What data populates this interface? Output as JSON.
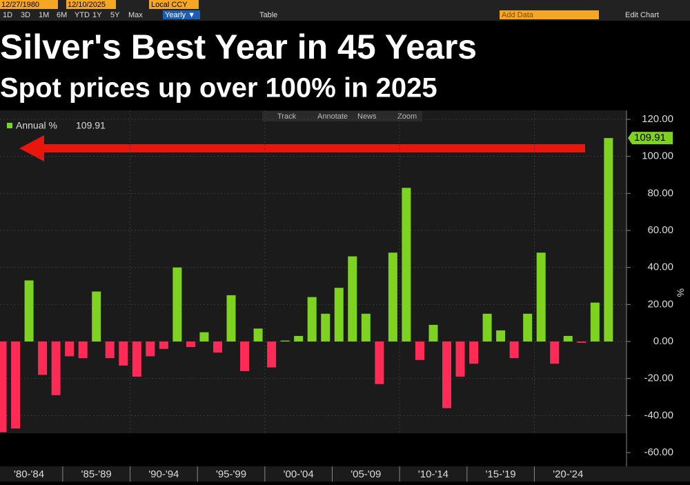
{
  "toolbar": {
    "start_date": "12/27/1980",
    "end_date": "12/10/2025",
    "currency": "Local CCY",
    "ranges": [
      "1D",
      "3D",
      "1M",
      "6M",
      "YTD",
      "1Y",
      "5Y",
      "Max"
    ],
    "period": "Yearly ▼",
    "table": "Table",
    "add_data": "Add Data",
    "edit_chart": "Edit Chart"
  },
  "chart_tools": [
    "Track",
    "Annotate",
    "News",
    "Zoom"
  ],
  "chart_data": {
    "type": "bar",
    "title": "Silver's Best Year in 45 Years",
    "subtitle": "Spot prices up over 100% in 2025",
    "y_label": "%",
    "x_labels": [
      "'80-'84",
      "'85-'89",
      "'90-'94",
      "'95-'99",
      "'00-'04",
      "'05-'09",
      "'10-'14",
      "'15-'19",
      "'20-'24"
    ],
    "series": [
      {
        "name": "Annual %",
        "positive_color": "#7ed321",
        "negative_color": "#ff2a55",
        "values": [
          -49,
          -47,
          33,
          -18,
          -29,
          -8,
          -9,
          27,
          -9,
          -13,
          -19,
          -8,
          -4,
          40,
          -3,
          5,
          -6,
          25,
          -16,
          7,
          -14,
          0.5,
          3,
          24,
          15,
          29,
          46,
          15,
          -23,
          48,
          83,
          -10,
          9,
          -36,
          -19,
          -12,
          15,
          6,
          -9,
          15,
          48,
          -12,
          3,
          -0.7,
          21,
          109.91
        ]
      }
    ],
    "ylim": [
      -60,
      125
    ],
    "yticks": [
      {
        "value": -60,
        "label": "-60.00"
      },
      {
        "value": -40,
        "label": "-40.00"
      },
      {
        "value": -20,
        "label": "-20.00"
      },
      {
        "value": 0,
        "label": "0.00"
      },
      {
        "value": 20,
        "label": "20.00"
      },
      {
        "value": 40,
        "label": "40.00"
      },
      {
        "value": 60,
        "label": "60.00"
      },
      {
        "value": 80,
        "label": "80.00"
      },
      {
        "value": 100,
        "label": "100.00"
      },
      {
        "value": 120,
        "label": "120.00"
      }
    ],
    "grid": true
  }
}
